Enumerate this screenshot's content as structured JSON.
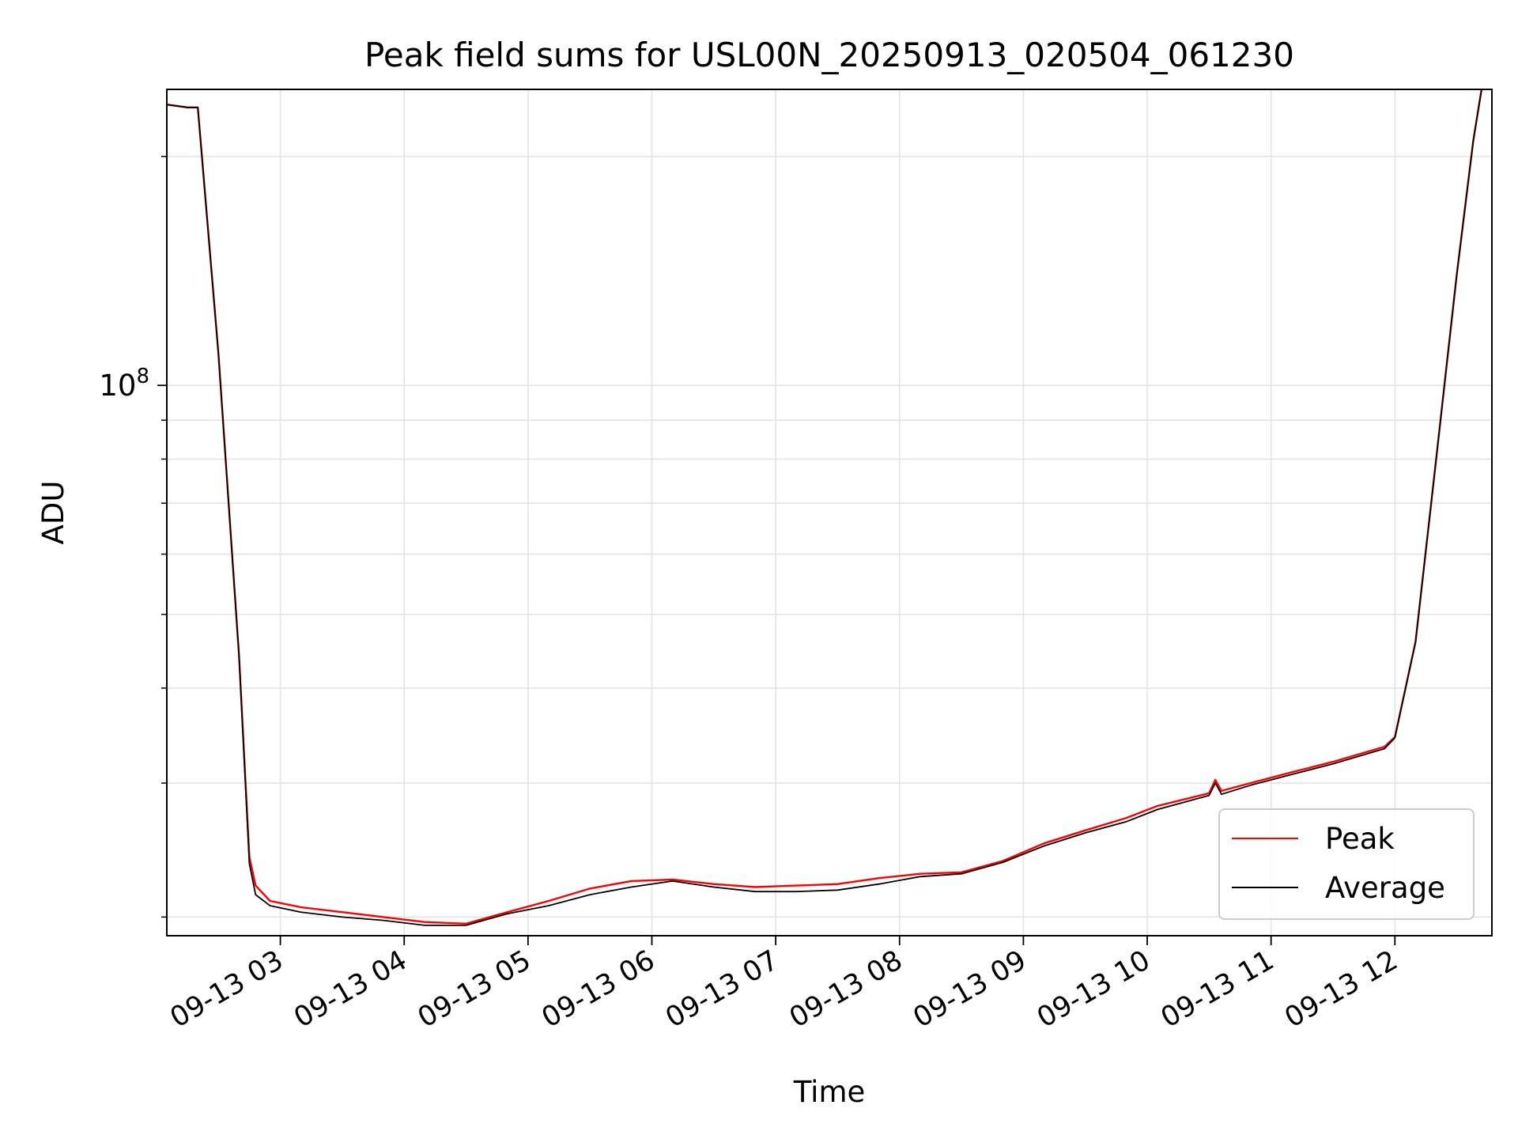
{
  "chart_data": {
    "type": "line",
    "title": "Peak field sums for USL00N_20250913_020504_061230",
    "xlabel": "Time",
    "ylabel": "ADU",
    "yscale": "log",
    "ylim": [
      18900000,
      245000000
    ],
    "xlim": [
      "2025-09-13 02:05",
      "2025-09-13 12:47"
    ],
    "x_ticks": [
      "09-13 03",
      "09-13 04",
      "09-13 05",
      "09-13 06",
      "09-13 07",
      "09-13 08",
      "09-13 09",
      "09-13 10",
      "09-13 11",
      "09-13 12"
    ],
    "y_tick_label": {
      "base": "10",
      "exp": "8"
    },
    "grid": true,
    "legend": "lower right",
    "series": [
      {
        "name": "Peak",
        "color": "#ff0000",
        "x": [
          "2025-09-13 02:05",
          "2025-09-13 02:15",
          "2025-09-13 02:20",
          "2025-09-13 02:30",
          "2025-09-13 02:40",
          "2025-09-13 02:45",
          "2025-09-13 02:48",
          "2025-09-13 02:55",
          "2025-09-13 03:10",
          "2025-09-13 03:30",
          "2025-09-13 03:50",
          "2025-09-13 04:10",
          "2025-09-13 04:30",
          "2025-09-13 04:50",
          "2025-09-13 05:10",
          "2025-09-13 05:30",
          "2025-09-13 05:50",
          "2025-09-13 06:10",
          "2025-09-13 06:30",
          "2025-09-13 06:50",
          "2025-09-13 07:10",
          "2025-09-13 07:30",
          "2025-09-13 07:50",
          "2025-09-13 08:10",
          "2025-09-13 08:30",
          "2025-09-13 08:50",
          "2025-09-13 09:10",
          "2025-09-13 09:30",
          "2025-09-13 09:50",
          "2025-09-13 10:05",
          "2025-09-13 10:30",
          "2025-09-13 10:33",
          "2025-09-13 10:36",
          "2025-09-13 10:50",
          "2025-09-13 11:10",
          "2025-09-13 11:30",
          "2025-09-13 11:55",
          "2025-09-13 12:00",
          "2025-09-13 12:10",
          "2025-09-13 12:20",
          "2025-09-13 12:30",
          "2025-09-13 12:38",
          "2025-09-13 12:42"
        ],
        "values": [
          234000000,
          232000000,
          232000000,
          110000000,
          44000000,
          24000000,
          22000000,
          21000000,
          20600000,
          20300000,
          20000000,
          19700000,
          19600000,
          20300000,
          21000000,
          21800000,
          22300000,
          22400000,
          22100000,
          21900000,
          22000000,
          22100000,
          22500000,
          22800000,
          22900000,
          23700000,
          25000000,
          26000000,
          27000000,
          28000000,
          29100000,
          30300000,
          29300000,
          30000000,
          31000000,
          32000000,
          33500000,
          34500000,
          46000000,
          80000000,
          140000000,
          210000000,
          245000000
        ]
      },
      {
        "name": "Average",
        "color": "#000000",
        "x": [
          "2025-09-13 02:05",
          "2025-09-13 02:15",
          "2025-09-13 02:20",
          "2025-09-13 02:30",
          "2025-09-13 02:40",
          "2025-09-13 02:45",
          "2025-09-13 02:48",
          "2025-09-13 02:55",
          "2025-09-13 03:10",
          "2025-09-13 03:30",
          "2025-09-13 03:50",
          "2025-09-13 04:10",
          "2025-09-13 04:30",
          "2025-09-13 04:50",
          "2025-09-13 05:10",
          "2025-09-13 05:30",
          "2025-09-13 05:50",
          "2025-09-13 06:10",
          "2025-09-13 06:30",
          "2025-09-13 06:50",
          "2025-09-13 07:10",
          "2025-09-13 07:30",
          "2025-09-13 07:50",
          "2025-09-13 08:10",
          "2025-09-13 08:30",
          "2025-09-13 08:50",
          "2025-09-13 09:10",
          "2025-09-13 09:30",
          "2025-09-13 09:50",
          "2025-09-13 10:05",
          "2025-09-13 10:30",
          "2025-09-13 10:33",
          "2025-09-13 10:36",
          "2025-09-13 10:50",
          "2025-09-13 11:10",
          "2025-09-13 11:30",
          "2025-09-13 11:55",
          "2025-09-13 12:00",
          "2025-09-13 12:10",
          "2025-09-13 12:20",
          "2025-09-13 12:30",
          "2025-09-13 12:38",
          "2025-09-13 12:42"
        ],
        "values": [
          234000000,
          232000000,
          232000000,
          110000000,
          44000000,
          23500000,
          21400000,
          20700000,
          20300000,
          20000000,
          19800000,
          19500000,
          19500000,
          20200000,
          20700000,
          21400000,
          21900000,
          22300000,
          21900000,
          21600000,
          21600000,
          21700000,
          22100000,
          22600000,
          22800000,
          23600000,
          24800000,
          25800000,
          26700000,
          27700000,
          28900000,
          30000000,
          29000000,
          29800000,
          30800000,
          31800000,
          33300000,
          34400000,
          46000000,
          80000000,
          140000000,
          210000000,
          245000000
        ]
      }
    ]
  }
}
